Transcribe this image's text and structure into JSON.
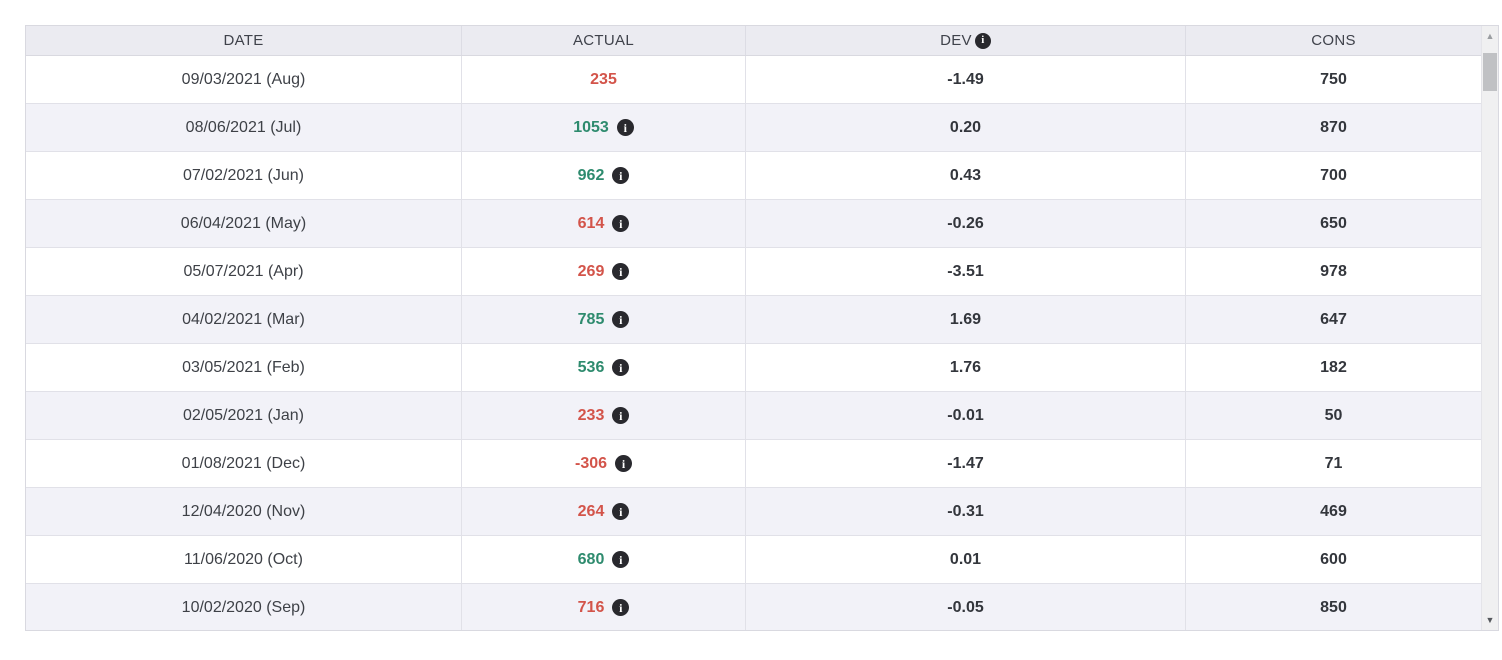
{
  "table": {
    "columns": [
      {
        "id": "date",
        "label": "DATE"
      },
      {
        "id": "actual",
        "label": "ACTUAL"
      },
      {
        "id": "dev",
        "label": "DEV",
        "has_info_icon": true
      },
      {
        "id": "cons",
        "label": "CONS"
      }
    ],
    "rows": [
      {
        "date": "09/03/2021 (Aug)",
        "actual": "235",
        "actual_color": "negative",
        "actual_info": false,
        "dev": "-1.49",
        "cons": "750"
      },
      {
        "date": "08/06/2021 (Jul)",
        "actual": "1053",
        "actual_color": "positive",
        "actual_info": true,
        "dev": "0.20",
        "cons": "870"
      },
      {
        "date": "07/02/2021 (Jun)",
        "actual": "962",
        "actual_color": "positive",
        "actual_info": true,
        "dev": "0.43",
        "cons": "700"
      },
      {
        "date": "06/04/2021 (May)",
        "actual": "614",
        "actual_color": "negative",
        "actual_info": true,
        "dev": "-0.26",
        "cons": "650"
      },
      {
        "date": "05/07/2021 (Apr)",
        "actual": "269",
        "actual_color": "negative",
        "actual_info": true,
        "dev": "-3.51",
        "cons": "978"
      },
      {
        "date": "04/02/2021 (Mar)",
        "actual": "785",
        "actual_color": "positive",
        "actual_info": true,
        "dev": "1.69",
        "cons": "647"
      },
      {
        "date": "03/05/2021 (Feb)",
        "actual": "536",
        "actual_color": "positive",
        "actual_info": true,
        "dev": "1.76",
        "cons": "182"
      },
      {
        "date": "02/05/2021 (Jan)",
        "actual": "233",
        "actual_color": "negative",
        "actual_info": true,
        "dev": "-0.01",
        "cons": "50"
      },
      {
        "date": "01/08/2021 (Dec)",
        "actual": "-306",
        "actual_color": "negative",
        "actual_info": true,
        "dev": "-1.47",
        "cons": "71"
      },
      {
        "date": "12/04/2020 (Nov)",
        "actual": "264",
        "actual_color": "negative",
        "actual_info": true,
        "dev": "-0.31",
        "cons": "469"
      },
      {
        "date": "11/06/2020 (Oct)",
        "actual": "680",
        "actual_color": "positive",
        "actual_info": true,
        "dev": "0.01",
        "cons": "600"
      },
      {
        "date": "10/02/2020 (Sep)",
        "actual": "716",
        "actual_color": "negative",
        "actual_info": true,
        "dev": "-0.05",
        "cons": "850"
      }
    ]
  },
  "icons": {
    "info": "i",
    "scroll_up": "▲",
    "scroll_down": "▼"
  },
  "colors": {
    "positive": "#2e8b6e",
    "negative": "#d3544a",
    "header_bg": "#ebebf1",
    "row_alt_bg": "#f2f2f8",
    "info_badge_bg": "#29292e"
  }
}
